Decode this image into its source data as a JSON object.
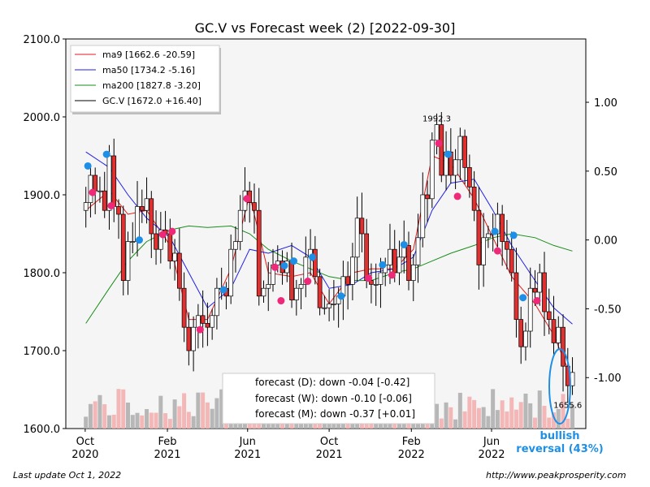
{
  "chart_data": {
    "type": "candlestick",
    "title": "GC.V vs Forecast week (2) [2022-09-30]",
    "x_tick_labels": [
      {
        "label": "Oct\n2020",
        "date": "2020-10-01"
      },
      {
        "label": "Feb\n2021",
        "date": "2021-02-01"
      },
      {
        "label": "Jun\n2021",
        "date": "2021-06-01"
      },
      {
        "label": "Oct\n2021",
        "date": "2021-10-01"
      },
      {
        "label": "Feb\n2022",
        "date": "2022-02-01"
      },
      {
        "label": "Jun\n2022",
        "date": "2022-06-01"
      }
    ],
    "x_range": [
      "2020-09-02",
      "2022-10-20"
    ],
    "y_left": {
      "range": [
        1600,
        2100
      ],
      "ticks": [
        1600,
        1700,
        1800,
        1900,
        2000,
        2100
      ],
      "tick_labels": [
        "1600.0",
        "1700.0",
        "1800.0",
        "1900.0",
        "2000.0",
        "2100.0"
      ]
    },
    "y_right": {
      "range": [
        -1.37,
        1.46
      ],
      "ticks": [
        -1.0,
        -0.5,
        0.0,
        0.5,
        1.0
      ],
      "tick_labels": [
        "-1.00",
        "-0.50",
        "0.00",
        "0.50",
        "1.00"
      ]
    },
    "legend": {
      "position": "top-left",
      "entries": [
        {
          "label": "ma9 [1662.6 -20.59]",
          "color": "#e41a1c"
        },
        {
          "label": "ma50 [1734.2 -5.16]",
          "color": "#1f1fe6"
        },
        {
          "label": "ma200 [1827.8 -3.20]",
          "color": "#1a8c1a"
        },
        {
          "label": "GC.V [1672.0 +16.40]",
          "color": "#000000"
        }
      ]
    },
    "series": [
      {
        "name": "GC.V",
        "kind": "weekly close",
        "color": "#000000",
        "points": [
          [
            "2020-10-02",
            1890
          ],
          [
            "2020-10-09",
            1925
          ],
          [
            "2020-10-16",
            1905
          ],
          [
            "2020-10-23",
            1905
          ],
          [
            "2020-10-30",
            1880
          ],
          [
            "2020-11-06",
            1950
          ],
          [
            "2020-11-13",
            1885
          ],
          [
            "2020-11-20",
            1875
          ],
          [
            "2020-11-27",
            1790
          ],
          [
            "2020-12-04",
            1840
          ],
          [
            "2020-12-11",
            1840
          ],
          [
            "2020-12-18",
            1885
          ],
          [
            "2020-12-25",
            1880
          ],
          [
            "2021-01-01",
            1895
          ],
          [
            "2021-01-08",
            1850
          ],
          [
            "2021-01-15",
            1830
          ],
          [
            "2021-01-22",
            1855
          ],
          [
            "2021-01-29",
            1850
          ],
          [
            "2021-02-05",
            1815
          ],
          [
            "2021-02-12",
            1825
          ],
          [
            "2021-02-19",
            1780
          ],
          [
            "2021-02-26",
            1730
          ],
          [
            "2021-03-05",
            1700
          ],
          [
            "2021-03-12",
            1730
          ],
          [
            "2021-03-19",
            1745
          ],
          [
            "2021-03-26",
            1735
          ],
          [
            "2021-04-02",
            1730
          ],
          [
            "2021-04-09",
            1745
          ],
          [
            "2021-04-16",
            1780
          ],
          [
            "2021-04-23",
            1780
          ],
          [
            "2021-04-30",
            1770
          ],
          [
            "2021-05-07",
            1830
          ],
          [
            "2021-05-14",
            1840
          ],
          [
            "2021-05-21",
            1880
          ],
          [
            "2021-05-28",
            1905
          ],
          [
            "2021-06-04",
            1890
          ],
          [
            "2021-06-11",
            1880
          ],
          [
            "2021-06-18",
            1770
          ],
          [
            "2021-06-25",
            1780
          ],
          [
            "2021-07-02",
            1785
          ],
          [
            "2021-07-09",
            1810
          ],
          [
            "2021-07-16",
            1815
          ],
          [
            "2021-07-23",
            1800
          ],
          [
            "2021-07-30",
            1815
          ],
          [
            "2021-08-06",
            1765
          ],
          [
            "2021-08-13",
            1780
          ],
          [
            "2021-08-20",
            1785
          ],
          [
            "2021-08-27",
            1820
          ],
          [
            "2021-09-03",
            1830
          ],
          [
            "2021-09-10",
            1795
          ],
          [
            "2021-09-17",
            1755
          ],
          [
            "2021-09-24",
            1755
          ],
          [
            "2021-10-01",
            1760
          ],
          [
            "2021-10-08",
            1760
          ],
          [
            "2021-10-15",
            1770
          ],
          [
            "2021-10-22",
            1795
          ],
          [
            "2021-10-29",
            1785
          ],
          [
            "2021-11-05",
            1820
          ],
          [
            "2021-11-12",
            1870
          ],
          [
            "2021-11-19",
            1850
          ],
          [
            "2021-11-26",
            1790
          ],
          [
            "2021-12-03",
            1785
          ],
          [
            "2021-12-10",
            1785
          ],
          [
            "2021-12-17",
            1800
          ],
          [
            "2021-12-24",
            1810
          ],
          [
            "2021-12-31",
            1830
          ],
          [
            "2022-01-07",
            1800
          ],
          [
            "2022-01-14",
            1820
          ],
          [
            "2022-01-21",
            1835
          ],
          [
            "2022-01-28",
            1790
          ],
          [
            "2022-02-04",
            1810
          ],
          [
            "2022-02-11",
            1845
          ],
          [
            "2022-02-18",
            1900
          ],
          [
            "2022-02-25",
            1895
          ],
          [
            "2022-03-04",
            1970
          ],
          [
            "2022-03-11",
            1990
          ],
          [
            "2022-03-18",
            1925
          ],
          [
            "2022-03-25",
            1955
          ],
          [
            "2022-04-01",
            1925
          ],
          [
            "2022-04-08",
            1945
          ],
          [
            "2022-04-15",
            1975
          ],
          [
            "2022-04-22",
            1935
          ],
          [
            "2022-04-29",
            1910
          ],
          [
            "2022-05-06",
            1880
          ],
          [
            "2022-05-13",
            1810
          ],
          [
            "2022-05-20",
            1845
          ],
          [
            "2022-05-27",
            1850
          ],
          [
            "2022-06-03",
            1850
          ],
          [
            "2022-06-10",
            1875
          ],
          [
            "2022-06-17",
            1840
          ],
          [
            "2022-06-24",
            1830
          ],
          [
            "2022-07-01",
            1800
          ],
          [
            "2022-07-08",
            1740
          ],
          [
            "2022-07-15",
            1705
          ],
          [
            "2022-07-22",
            1725
          ],
          [
            "2022-07-29",
            1780
          ],
          [
            "2022-08-05",
            1775
          ],
          [
            "2022-08-12",
            1800
          ],
          [
            "2022-08-19",
            1750
          ],
          [
            "2022-08-26",
            1740
          ],
          [
            "2022-09-02",
            1710
          ],
          [
            "2022-09-09",
            1730
          ],
          [
            "2022-09-16",
            1680
          ],
          [
            "2022-09-23",
            1655
          ],
          [
            "2022-09-30",
            1672
          ]
        ]
      },
      {
        "name": "ma9",
        "color": "#e41a1c",
        "points": [
          [
            "2020-10-02",
            1880
          ],
          [
            "2020-11-06",
            1905
          ],
          [
            "2020-12-04",
            1875
          ],
          [
            "2021-01-01",
            1880
          ],
          [
            "2021-02-05",
            1835
          ],
          [
            "2021-03-05",
            1740
          ],
          [
            "2021-04-02",
            1740
          ],
          [
            "2021-05-07",
            1805
          ],
          [
            "2021-06-04",
            1900
          ],
          [
            "2021-07-02",
            1800
          ],
          [
            "2021-08-06",
            1795
          ],
          [
            "2021-09-03",
            1800
          ],
          [
            "2021-10-01",
            1760
          ],
          [
            "2021-11-05",
            1800
          ],
          [
            "2021-12-03",
            1805
          ],
          [
            "2022-01-07",
            1805
          ],
          [
            "2022-02-04",
            1830
          ],
          [
            "2022-03-04",
            1950
          ],
          [
            "2022-04-01",
            1940
          ],
          [
            "2022-05-06",
            1895
          ],
          [
            "2022-06-03",
            1845
          ],
          [
            "2022-07-01",
            1795
          ],
          [
            "2022-08-05",
            1760
          ],
          [
            "2022-09-02",
            1720
          ],
          [
            "2022-09-30",
            1662.6
          ]
        ]
      },
      {
        "name": "ma50",
        "color": "#1f1fe6",
        "points": [
          [
            "2020-10-02",
            1955
          ],
          [
            "2020-11-06",
            1935
          ],
          [
            "2020-12-04",
            1900
          ],
          [
            "2021-01-01",
            1870
          ],
          [
            "2021-02-05",
            1845
          ],
          [
            "2021-03-05",
            1800
          ],
          [
            "2021-04-02",
            1755
          ],
          [
            "2021-05-07",
            1780
          ],
          [
            "2021-06-04",
            1830
          ],
          [
            "2021-07-02",
            1825
          ],
          [
            "2021-08-06",
            1835
          ],
          [
            "2021-09-03",
            1820
          ],
          [
            "2021-10-01",
            1780
          ],
          [
            "2021-11-05",
            1785
          ],
          [
            "2021-12-03",
            1800
          ],
          [
            "2022-01-07",
            1805
          ],
          [
            "2022-02-04",
            1820
          ],
          [
            "2022-03-04",
            1880
          ],
          [
            "2022-04-01",
            1915
          ],
          [
            "2022-05-06",
            1920
          ],
          [
            "2022-06-03",
            1880
          ],
          [
            "2022-07-01",
            1835
          ],
          [
            "2022-08-05",
            1790
          ],
          [
            "2022-09-02",
            1755
          ],
          [
            "2022-09-30",
            1734.2
          ]
        ]
      },
      {
        "name": "ma200",
        "color": "#1a8c1a",
        "points": [
          [
            "2020-10-02",
            1735
          ],
          [
            "2020-11-06",
            1780
          ],
          [
            "2020-12-04",
            1815
          ],
          [
            "2021-01-01",
            1840
          ],
          [
            "2021-02-05",
            1855
          ],
          [
            "2021-03-05",
            1860
          ],
          [
            "2021-04-02",
            1858
          ],
          [
            "2021-05-07",
            1860
          ],
          [
            "2021-06-04",
            1850
          ],
          [
            "2021-07-02",
            1830
          ],
          [
            "2021-08-06",
            1815
          ],
          [
            "2021-09-03",
            1805
          ],
          [
            "2021-10-01",
            1795
          ],
          [
            "2021-11-05",
            1790
          ],
          [
            "2021-12-03",
            1790
          ],
          [
            "2022-01-07",
            1800
          ],
          [
            "2022-02-04",
            1805
          ],
          [
            "2022-03-04",
            1815
          ],
          [
            "2022-04-01",
            1825
          ],
          [
            "2022-05-06",
            1835
          ],
          [
            "2022-06-03",
            1845
          ],
          [
            "2022-07-01",
            1850
          ],
          [
            "2022-08-05",
            1845
          ],
          [
            "2022-09-02",
            1835
          ],
          [
            "2022-09-30",
            1827.8
          ]
        ]
      }
    ],
    "markers": {
      "blue": [
        [
          "2020-10-05",
          1937
        ],
        [
          "2020-11-02",
          1952
        ],
        [
          "2020-12-21",
          1842
        ],
        [
          "2021-04-26",
          1778
        ],
        [
          "2021-07-26",
          1809
        ],
        [
          "2021-08-09",
          1815
        ],
        [
          "2021-09-06",
          1820
        ],
        [
          "2021-10-19",
          1770
        ],
        [
          "2021-12-20",
          1810
        ],
        [
          "2022-01-21",
          1836
        ],
        [
          "2022-03-28",
          1952
        ],
        [
          "2022-06-06",
          1853
        ],
        [
          "2022-07-04",
          1848
        ],
        [
          "2022-07-18",
          1768
        ]
      ],
      "pink": [
        [
          "2020-10-12",
          1903
        ],
        [
          "2020-11-09",
          1886
        ],
        [
          "2021-01-25",
          1849
        ],
        [
          "2021-02-08",
          1853
        ],
        [
          "2021-03-22",
          1727
        ],
        [
          "2021-05-31",
          1895
        ],
        [
          "2021-07-12",
          1807
        ],
        [
          "2021-07-21",
          1764
        ],
        [
          "2021-08-30",
          1789
        ],
        [
          "2021-11-29",
          1793
        ],
        [
          "2022-01-03",
          1797
        ],
        [
          "2022-03-14",
          1966
        ],
        [
          "2022-04-11",
          1898
        ],
        [
          "2022-06-10",
          1828
        ],
        [
          "2022-08-08",
          1764
        ]
      ]
    },
    "volume_bars_shown": true,
    "annotations": [
      {
        "text": "1992.3",
        "x": "2022-03-11",
        "y": 1992.3
      },
      {
        "text": "1655.6",
        "x": "2022-09-23",
        "y": 1655.6
      }
    ],
    "forecast_box": {
      "lines": [
        "forecast (D): down -0.04 [-0.42]",
        "forecast (W): down -0.10 [-0.06]",
        "forecast (M): down -0.37 [+0.01]"
      ]
    },
    "signal": {
      "line1": "bullish",
      "line2": "reversal (43%)",
      "color": "#1e8fe6"
    }
  },
  "footer": {
    "left": "Last update Oct  1, 2022",
    "right": "http://www.peakprosperity.com"
  }
}
